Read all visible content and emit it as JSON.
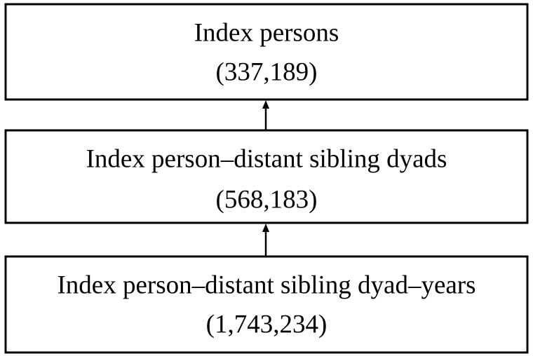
{
  "nodes": [
    {
      "label": "Index persons",
      "count": "(337,189)"
    },
    {
      "label": "Index person–distant sibling dyads",
      "count": "(568,183)"
    },
    {
      "label": "Index person–distant sibling dyad–years",
      "count": "(1,743,234)"
    }
  ]
}
